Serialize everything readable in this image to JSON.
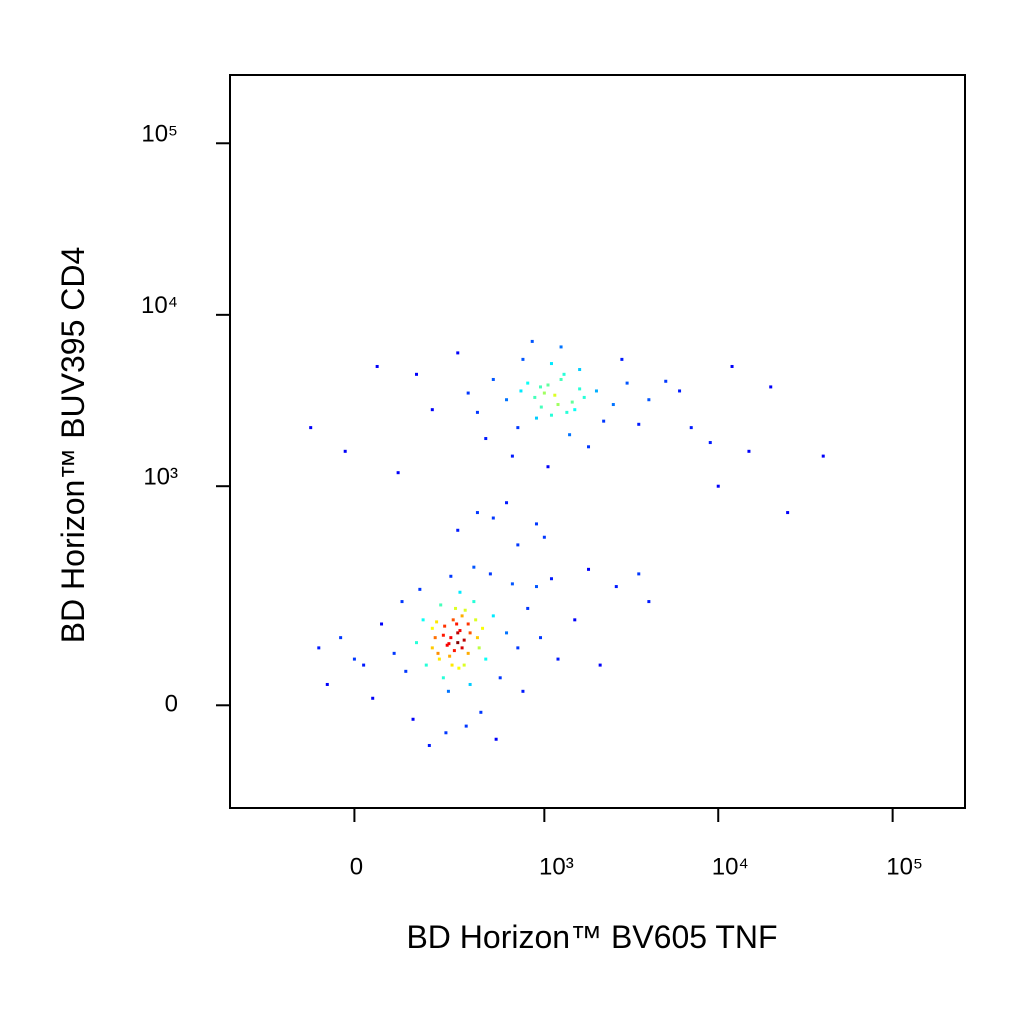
{
  "chart_data": {
    "type": "scatter",
    "xlabel": "BD Horizon™ BV605 TNF",
    "ylabel": "BD Horizon™ BUV395 CD4",
    "xscale": "biexponential",
    "yscale": "biexponential",
    "colormap": "jet",
    "xlim": [
      -408,
      260000
    ],
    "ylim": [
      -197,
      250000
    ],
    "xticks": [
      0,
      {
        "value": 1000,
        "label": "10³"
      },
      {
        "value": 10000,
        "label": "10⁴"
      },
      {
        "value": 100000,
        "label": "10⁵"
      }
    ],
    "yticks": [
      0,
      {
        "value": 1000,
        "label": "10³"
      },
      {
        "value": 10000,
        "label": "10⁴"
      },
      {
        "value": 100000,
        "label": "10⁵"
      }
    ],
    "x": [
      262,
      300,
      220,
      350,
      180,
      400,
      280,
      240,
      320,
      200,
      150,
      450,
      500,
      120,
      380,
      260,
      330,
      290,
      210,
      170,
      430,
      360,
      310,
      230,
      600,
      700,
      90,
      60,
      20,
      -30,
      -80,
      140,
      250,
      420,
      550,
      800,
      950,
      1200,
      1500,
      2100,
      2600,
      650,
      480,
      380,
      270,
      160,
      110,
      40,
      0,
      -60,
      190,
      340,
      520,
      750,
      900,
      1100,
      1800,
      3500,
      4000,
      300,
      270,
      310,
      255,
      285,
      240,
      330,
      295,
      225,
      350,
      275,
      245,
      320,
      360,
      200,
      390,
      410,
      265,
      305,
      215,
      335,
      1000,
      1200,
      800,
      1500,
      600,
      2000,
      900,
      1300,
      700,
      1700,
      500,
      2500,
      1100,
      400,
      3000,
      1400,
      950,
      1600,
      750,
      2200,
      350,
      1800,
      650,
      4000,
      5000,
      1250,
      850,
      300,
      2800,
      200,
      150,
      1050,
      450,
      3500,
      6000,
      1150,
      1350,
      1050,
      1450,
      880,
      1600,
      1250,
      960,
      1100,
      730,
      7000,
      9000,
      15000,
      20000,
      12000,
      40000,
      25000,
      10000,
      100,
      -20,
      -100,
      50,
      600,
      900,
      700,
      500,
      1000,
      300,
      400
    ],
    "values": [
      98,
      120,
      80,
      140,
      60,
      110,
      150,
      40,
      90,
      130,
      100,
      70,
      160,
      50,
      200,
      20,
      60,
      180,
      110,
      150,
      130,
      30,
      230,
      190,
      120,
      90,
      80,
      140,
      60,
      110,
      90,
      -20,
      -40,
      -10,
      40,
      180,
      110,
      70,
      150,
      60,
      250,
      260,
      300,
      330,
      290,
      240,
      200,
      10,
      70,
      30,
      -60,
      -30,
      -50,
      20,
      250,
      280,
      320,
      300,
      200,
      100,
      110,
      125,
      95,
      85,
      115,
      105,
      140,
      70,
      80,
      60,
      135,
      160,
      120,
      90,
      150,
      90,
      75,
      55,
      145,
      175,
      3500,
      3000,
      4000,
      2800,
      3200,
      3600,
      2500,
      4500,
      2200,
      3300,
      4200,
      3000,
      5200,
      2700,
      4000,
      2000,
      3800,
      4800,
      5500,
      2400,
      3500,
      1700,
      1500,
      3200,
      4100,
      6500,
      7000,
      6000,
      5500,
      2800,
      4500,
      1300,
      1900,
      2300,
      3600,
      3400,
      2700,
      3900,
      3100,
      3300,
      3700,
      4200,
      2900,
      2600,
      3600,
      2200,
      1800,
      1600,
      3800,
      5000,
      1500,
      700,
      1000,
      1200,
      1600,
      2200,
      5000,
      800,
      600,
      450,
      650,
      500,
      550,
      700
    ]
  }
}
